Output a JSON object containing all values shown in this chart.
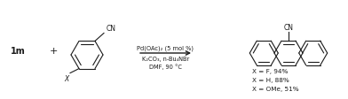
{
  "background_color": "#ffffff",
  "figsize": [
    3.92,
    1.13
  ],
  "dpi": 100,
  "label_1m": "1m",
  "plus_sign": "+",
  "arrow_text_line1": "Pd(OAc)₂ (5 mol %)",
  "arrow_text_line2": "K₂CO₃, n-Bu₄NBr",
  "arrow_text_line3": "DMF, 90 °C",
  "results_line1": "X = F, 94%",
  "results_line2": "X = H, 88%",
  "results_line3": "X = OMe, 51%",
  "text_color": "#1a1a1a",
  "line_color": "#1a1a1a"
}
